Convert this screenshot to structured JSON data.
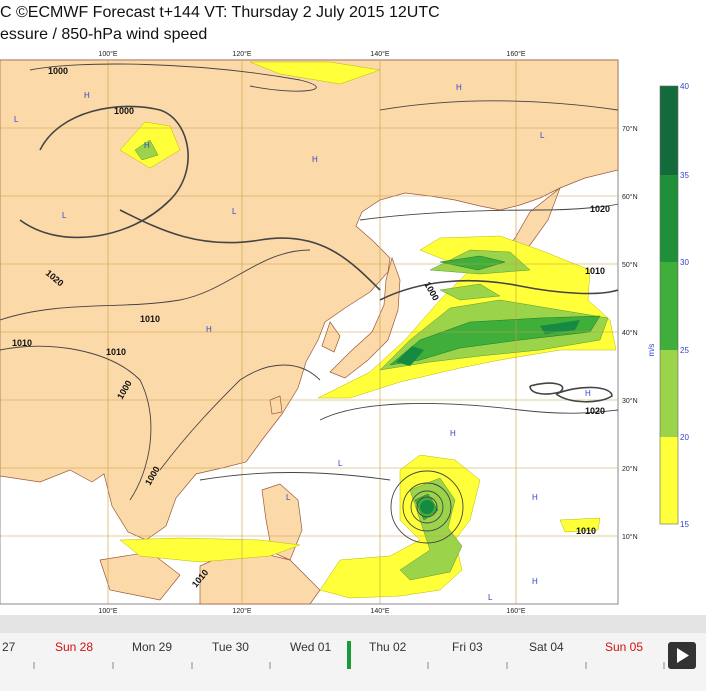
{
  "header": {
    "title": "C ©ECMWF Forecast t+144 VT: Thursday 2 July 2015 12UTC",
    "subtitle": "essure / 850-hPa wind speed"
  },
  "map": {
    "lon_labels": [
      "100°E",
      "120°E",
      "140°E",
      "160°E"
    ],
    "lat_labels": [
      "70°N",
      "60°N",
      "50°N",
      "40°N",
      "30°N",
      "20°N",
      "10°N"
    ],
    "isobar_labels": [
      "1000",
      "1000",
      "1020",
      "1020",
      "1010",
      "1000",
      "1010",
      "1010",
      "1010",
      "1000",
      "1020",
      "1010",
      "1010",
      "1000"
    ],
    "centers": [
      "H",
      "H",
      "L",
      "L",
      "H",
      "L",
      "H",
      "L",
      "H",
      "L",
      "H",
      "H",
      "L",
      "H",
      "L",
      "H"
    ]
  },
  "colorbar": {
    "ticks": [
      "40",
      "35",
      "30",
      "25",
      "20",
      "15"
    ],
    "unit": "m/s"
  },
  "timeline": {
    "days": [
      "27",
      "Sun 28",
      "Mon 29",
      "Tue 30",
      "Wed 01",
      "Thu 02",
      "Fri 03",
      "Sat 04",
      "Sun 05"
    ]
  }
}
